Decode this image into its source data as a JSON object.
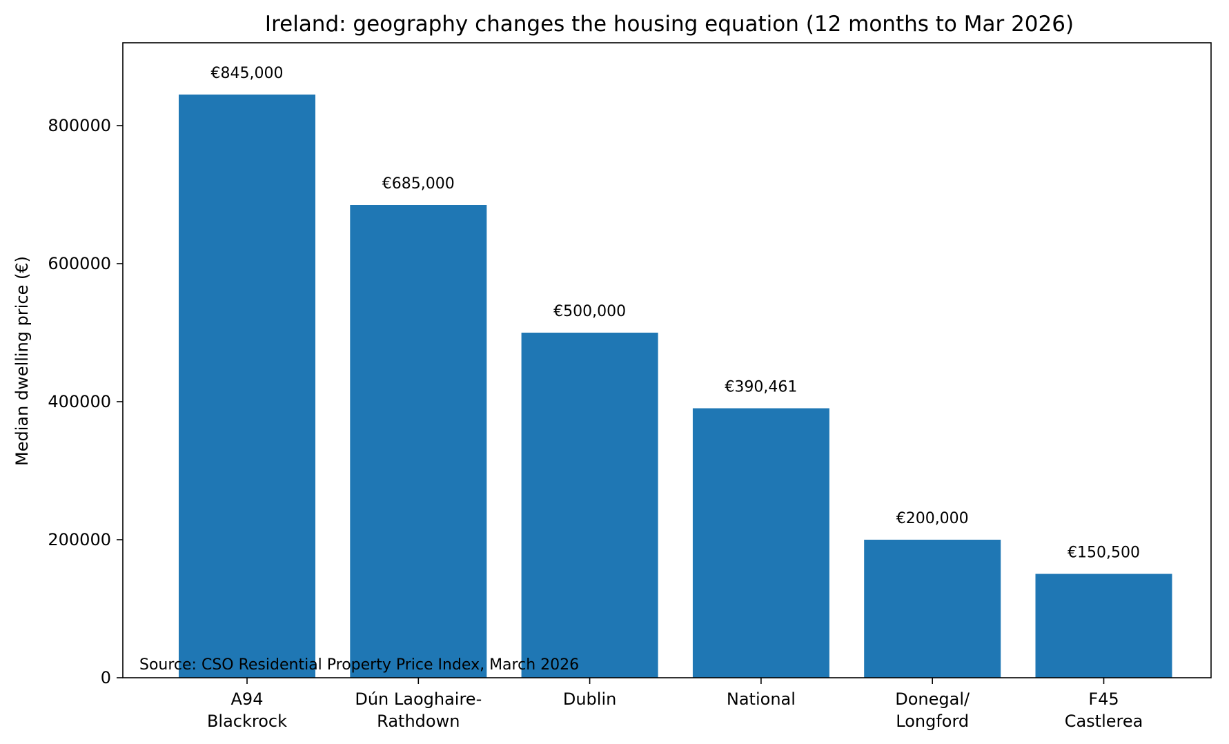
{
  "chart_data": {
    "type": "bar",
    "title": "Ireland: geography changes the housing equation (12 months to Mar 2026)",
    "xlabel": "",
    "ylabel": "Median dwelling price (€)",
    "categories": [
      [
        "A94",
        "Blackrock"
      ],
      [
        "Dún Laoghaire-",
        "Rathdown"
      ],
      [
        "Dublin"
      ],
      [
        "National"
      ],
      [
        "Donegal/",
        "Longford"
      ],
      [
        "F45",
        "Castlerea"
      ]
    ],
    "values": [
      845000,
      685000,
      500000,
      390461,
      200000,
      150500
    ],
    "data_labels": [
      "€845,000",
      "€685,000",
      "€500,000",
      "€390,461",
      "€200,000",
      "€150,500"
    ],
    "ylim": [
      0,
      920000
    ],
    "yticks": [
      0,
      200000,
      400000,
      600000,
      800000
    ],
    "grid": false,
    "bar_color": "#1f77b4",
    "annotation": "Source: CSO Residential Property Price Index, March 2026"
  }
}
